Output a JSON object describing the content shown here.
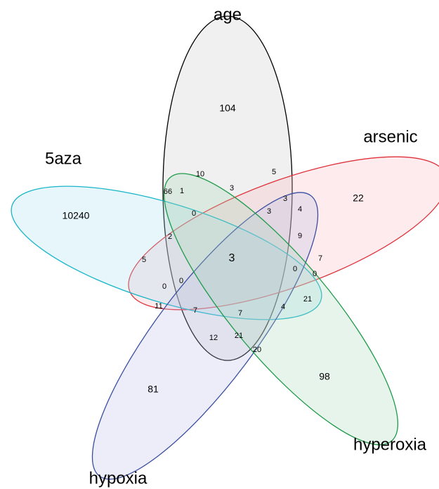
{
  "sets": [
    {
      "label": "age"
    },
    {
      "label": "arsenic"
    },
    {
      "label": "5aza"
    },
    {
      "label": "hypoxia"
    },
    {
      "label": "hyperoxia"
    }
  ],
  "regions": [
    "104",
    "22",
    "10240",
    "81",
    "98",
    "3",
    "10",
    "5",
    "3",
    "66",
    "1",
    "3",
    "0",
    "3",
    "4",
    "2",
    "9",
    "5",
    "7",
    "0",
    "0",
    "0",
    "0",
    "11",
    "21",
    "7",
    "7",
    "4",
    "12",
    "21",
    "20"
  ]
}
